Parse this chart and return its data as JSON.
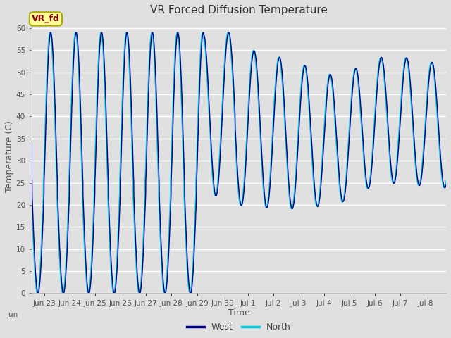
{
  "title": "VR Forced Diffusion Temperature",
  "xlabel": "Time",
  "ylabel": "Temperature (C)",
  "ylim": [
    0,
    62
  ],
  "yticks": [
    0,
    5,
    10,
    15,
    20,
    25,
    30,
    35,
    40,
    45,
    50,
    55,
    60
  ],
  "west_color": "#00008B",
  "north_color": "#00CCDD",
  "bg_color": "#E0E0E0",
  "grid_color": "#FFFFFF",
  "annotation_text": "VR_fd",
  "annotation_fg": "#8B0000",
  "annotation_bg": "#FFFF99",
  "annotation_border": "#AAAA00",
  "legend_west": "West",
  "legend_north": "North",
  "x_tick_labels": [
    "Jun 23",
    "Jun 24",
    "Jun 25",
    "Jun 26",
    "Jun 27",
    "Jun 28",
    "Jun 29",
    "Jun 30",
    "Jul 1",
    "Jul 2",
    "Jul 3",
    "Jul 4",
    "Jul 5",
    "Jul 6",
    "Jul 7",
    "Jul 8"
  ],
  "title_fontsize": 11,
  "label_fontsize": 9,
  "tick_fontsize": 7.5
}
